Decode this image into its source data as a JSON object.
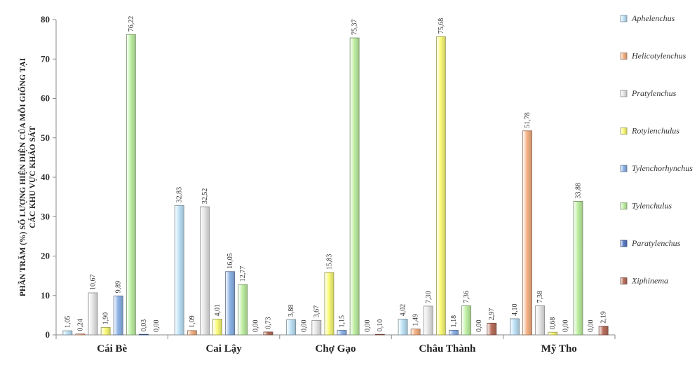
{
  "chart_data": {
    "type": "bar",
    "title": "",
    "ylabel_line1": "PHẦN TRĂM (%) SỐ LƯỢNG HIỆN DIỆN CỦA MỖI GIỐNG TẠI",
    "ylabel_line2": "CÁC KHU VỰC KHẢO SÁT",
    "xlabel": "",
    "ylim": [
      0,
      80
    ],
    "yticks": [
      "0",
      "10",
      "20",
      "30",
      "40",
      "50",
      "60",
      "70",
      "80"
    ],
    "ytick_values": [
      0,
      10,
      20,
      30,
      40,
      50,
      60,
      70,
      80
    ],
    "categories": [
      "Cái Bè",
      "Cai Lậy",
      "Chợ Gạo",
      "Châu Thành",
      "Mỹ Tho"
    ],
    "legend_position": "right",
    "series": [
      {
        "name": "Aphelenchus",
        "color": "#bfe3f7",
        "values": [
          1.05,
          32.83,
          3.88,
          4.02,
          4.1
        ],
        "labels": [
          "1,05",
          "32,83",
          "3,88",
          "4,02",
          "4,10"
        ]
      },
      {
        "name": "Helicotylenchus",
        "color": "#f5b184",
        "values": [
          0.24,
          1.09,
          0.0,
          1.49,
          51.78
        ],
        "labels": [
          "0,24",
          "1,09",
          "0,00",
          "1,49",
          "51,78"
        ]
      },
      {
        "name": "Pratylenchus",
        "color": "#e6e6e6",
        "values": [
          10.67,
          32.52,
          3.67,
          7.3,
          7.38
        ],
        "labels": [
          "10,67",
          "32,52",
          "3,67",
          "7,30",
          "7,38"
        ]
      },
      {
        "name": "Rotylenchulus",
        "color": "#fbfb7a",
        "values": [
          1.9,
          4.01,
          15.83,
          75.68,
          0.68
        ],
        "labels": [
          "1,90",
          "4,01",
          "15,83",
          "75,68",
          "0,68"
        ]
      },
      {
        "name": "Tylenchorhynchus",
        "color": "#8eb4e8",
        "values": [
          9.89,
          16.05,
          1.15,
          1.18,
          0.0
        ],
        "labels": [
          "9,89",
          "16,05",
          "1,15",
          "1,18",
          "0,00"
        ]
      },
      {
        "name": "Tylenchulus",
        "color": "#bff0a4",
        "values": [
          76.22,
          12.77,
          75.37,
          7.36,
          33.88
        ],
        "labels": [
          "76,22",
          "12,77",
          "75,37",
          "7,36",
          "33,88"
        ]
      },
      {
        "name": "Paratylenchus",
        "color": "#5a7ec8",
        "values": [
          0.03,
          0.0,
          0.0,
          0.0,
          0.0
        ],
        "labels": [
          "0,03",
          "0,00",
          "0,00",
          "0,00",
          "0,00"
        ]
      },
      {
        "name": "Xiphinema",
        "color": "#b9705e",
        "values": [
          0.0,
          0.73,
          0.1,
          2.97,
          2.19
        ],
        "labels": [
          "0,00",
          "0,73",
          "0,10",
          "2,97",
          "2,19"
        ]
      }
    ]
  }
}
